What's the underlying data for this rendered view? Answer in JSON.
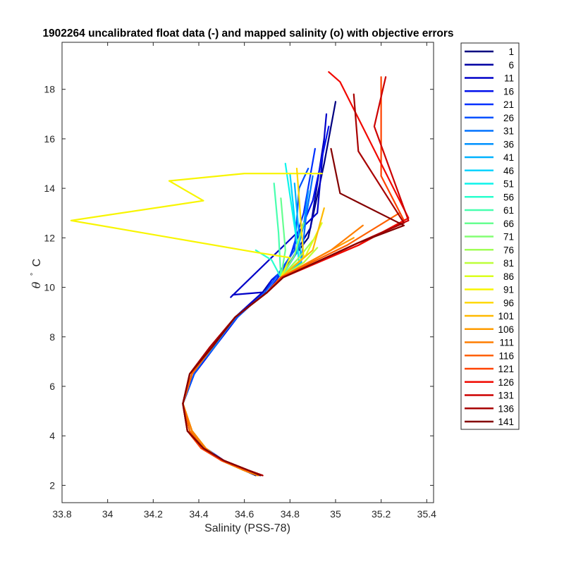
{
  "chart_data": {
    "type": "line",
    "title": "1902264 uncalibrated float data (-) and mapped salinity (o) with objective errors",
    "xlabel": "Salinity (PSS-78)",
    "ylabel_symbol": "θ",
    "ylabel_unit": "C",
    "xlim": [
      33.8,
      35.43
    ],
    "ylim": [
      1.3,
      19.9
    ],
    "xticks": [
      33.8,
      34,
      34.2,
      34.4,
      34.6,
      34.8,
      35,
      35.2,
      35.4
    ],
    "xtick_labels": [
      "33.8",
      "34",
      "34.2",
      "34.4",
      "34.6",
      "34.8",
      "35",
      "35.2",
      "35.4"
    ],
    "yticks": [
      2,
      4,
      6,
      8,
      10,
      12,
      14,
      16,
      18
    ],
    "ytick_labels": [
      "2",
      "4",
      "6",
      "8",
      "10",
      "12",
      "14",
      "16",
      "18"
    ],
    "grid": false,
    "legend_position": "outside-right",
    "series": [
      {
        "name": "1",
        "color": "#000080"
      },
      {
        "name": "6",
        "color": "#0000a3"
      },
      {
        "name": "11",
        "color": "#0000c8"
      },
      {
        "name": "16",
        "color": "#0010ec"
      },
      {
        "name": "21",
        "color": "#0030ff"
      },
      {
        "name": "26",
        "color": "#0050ff"
      },
      {
        "name": "31",
        "color": "#0072ff"
      },
      {
        "name": "36",
        "color": "#0092ff"
      },
      {
        "name": "41",
        "color": "#00b2ff"
      },
      {
        "name": "46",
        "color": "#00d4ff"
      },
      {
        "name": "51",
        "color": "#0cf4eb"
      },
      {
        "name": "56",
        "color": "#29ffce"
      },
      {
        "name": "61",
        "color": "#48ffaf"
      },
      {
        "name": "66",
        "color": "#66ff90"
      },
      {
        "name": "71",
        "color": "#83ff73"
      },
      {
        "name": "76",
        "color": "#a0ff56"
      },
      {
        "name": "81",
        "color": "#bdff39"
      },
      {
        "name": "86",
        "color": "#dbff1c"
      },
      {
        "name": "91",
        "color": "#f8f500"
      },
      {
        "name": "96",
        "color": "#ffd800"
      },
      {
        "name": "101",
        "color": "#ffb900"
      },
      {
        "name": "106",
        "color": "#ff9c00"
      },
      {
        "name": "111",
        "color": "#ff7e00"
      },
      {
        "name": "116",
        "color": "#ff6000"
      },
      {
        "name": "121",
        "color": "#ff4200"
      },
      {
        "name": "126",
        "color": "#f10800"
      },
      {
        "name": "131",
        "color": "#cd0000"
      },
      {
        "name": "136",
        "color": "#a80000"
      },
      {
        "name": "141",
        "color": "#840000"
      }
    ],
    "profiles": [
      {
        "series": 0,
        "s": [
          34.65,
          34.6,
          34.5,
          34.43,
          34.37,
          34.33,
          34.37,
          34.46,
          34.56,
          34.7,
          34.74,
          34.88,
          34.95,
          35.0
        ],
        "t": [
          2.4,
          2.6,
          3.0,
          3.5,
          4.2,
          5.3,
          6.5,
          7.6,
          8.8,
          9.8,
          10.3,
          12.0,
          15.0,
          17.5
        ]
      },
      {
        "series": 1,
        "s": [
          34.66,
          34.6,
          34.5,
          34.42,
          34.37,
          34.33,
          34.38,
          34.47,
          34.57,
          34.68,
          34.72,
          34.78,
          34.89,
          34.95
        ],
        "t": [
          2.4,
          2.6,
          3.0,
          3.5,
          4.2,
          5.3,
          6.5,
          7.6,
          8.8,
          9.8,
          10.3,
          10.7,
          12.4,
          16.0
        ]
      },
      {
        "series": 2,
        "s": [
          34.67,
          34.6,
          34.5,
          34.43,
          34.37,
          34.33,
          34.37,
          34.46,
          34.56,
          34.68,
          34.55,
          34.54,
          34.92,
          34.96
        ],
        "t": [
          2.4,
          2.6,
          3.0,
          3.5,
          4.2,
          5.3,
          6.5,
          7.6,
          8.8,
          9.8,
          9.7,
          9.6,
          13.0,
          17.0
        ]
      },
      {
        "series": 3,
        "s": [
          34.67,
          34.61,
          34.51,
          34.43,
          34.37,
          34.33,
          34.38,
          34.47,
          34.57,
          34.69,
          34.72,
          34.78,
          34.9,
          34.97
        ],
        "t": [
          2.4,
          2.6,
          3.0,
          3.5,
          4.2,
          5.3,
          6.5,
          7.6,
          8.8,
          9.8,
          10.3,
          10.8,
          13.5,
          16.5
        ]
      },
      {
        "series": 4,
        "s": [
          34.66,
          34.61,
          34.5,
          34.43,
          34.37,
          34.33,
          34.37,
          34.46,
          34.56,
          34.7,
          34.74,
          34.8,
          34.86,
          34.91
        ],
        "t": [
          2.4,
          2.6,
          3.0,
          3.5,
          4.2,
          5.3,
          6.5,
          7.6,
          8.8,
          9.8,
          10.3,
          11.2,
          13.0,
          15.6
        ]
      },
      {
        "series": 5,
        "s": [
          34.67,
          34.6,
          34.51,
          34.43,
          34.37,
          34.33,
          34.38,
          34.46,
          34.57,
          34.69,
          34.73,
          34.82,
          34.84,
          34.88
        ],
        "t": [
          2.4,
          2.6,
          3.0,
          3.5,
          4.2,
          5.3,
          6.5,
          7.6,
          8.8,
          9.8,
          10.3,
          11.5,
          14.0,
          14.8
        ]
      },
      {
        "series": 6,
        "s": [
          34.66,
          34.6,
          34.5,
          34.43,
          34.37,
          34.33,
          34.37,
          34.47,
          34.56,
          34.7,
          34.76,
          34.85,
          34.87,
          34.9
        ],
        "t": [
          2.4,
          2.6,
          3.0,
          3.5,
          4.2,
          5.3,
          6.5,
          7.6,
          8.8,
          9.8,
          10.4,
          11.1,
          12.8,
          14.5
        ]
      },
      {
        "series": 7,
        "s": [
          34.66,
          34.6,
          34.5,
          34.43,
          34.37,
          34.33,
          34.37,
          34.46,
          34.56,
          34.7,
          34.76,
          34.83,
          34.86,
          34.88
        ],
        "t": [
          2.4,
          2.6,
          3.0,
          3.5,
          4.2,
          5.3,
          6.5,
          7.6,
          8.8,
          9.8,
          10.4,
          11.4,
          12.5,
          13.9
        ]
      },
      {
        "series": 8,
        "s": [
          34.66,
          34.6,
          34.5,
          34.43,
          34.37,
          34.33,
          34.37,
          34.46,
          34.56,
          34.7,
          34.76,
          34.85,
          34.82
        ],
        "t": [
          2.4,
          2.6,
          3.0,
          3.5,
          4.2,
          5.3,
          6.5,
          7.6,
          8.8,
          9.8,
          10.4,
          11.0,
          14.2
        ]
      },
      {
        "series": 9,
        "s": [
          34.66,
          34.6,
          34.5,
          34.43,
          34.37,
          34.33,
          34.37,
          34.46,
          34.56,
          34.7,
          34.76,
          34.84,
          34.8
        ],
        "t": [
          2.4,
          2.6,
          3.0,
          3.5,
          4.2,
          5.3,
          6.5,
          7.6,
          8.8,
          9.8,
          10.4,
          11.0,
          14.6
        ]
      },
      {
        "series": 10,
        "s": [
          34.66,
          34.6,
          34.5,
          34.43,
          34.37,
          34.33,
          34.37,
          34.46,
          34.56,
          34.7,
          34.76,
          34.84,
          34.78
        ],
        "t": [
          2.4,
          2.6,
          3.0,
          3.5,
          4.2,
          5.3,
          6.5,
          7.6,
          8.8,
          9.8,
          10.4,
          11.2,
          15.0
        ]
      },
      {
        "series": 11,
        "s": [
          34.66,
          34.6,
          34.5,
          34.43,
          34.37,
          34.33,
          34.37,
          34.46,
          34.56,
          34.7,
          34.76,
          34.72,
          34.65
        ],
        "t": [
          2.4,
          2.6,
          3.0,
          3.5,
          4.2,
          5.3,
          6.5,
          7.6,
          8.8,
          9.8,
          10.4,
          11.1,
          11.5
        ]
      },
      {
        "series": 12,
        "s": [
          34.66,
          34.6,
          34.5,
          34.43,
          34.37,
          34.33,
          34.37,
          34.46,
          34.56,
          34.7,
          34.76,
          34.75,
          34.73
        ],
        "t": [
          2.4,
          2.6,
          3.0,
          3.5,
          4.2,
          5.3,
          6.5,
          7.6,
          8.8,
          9.8,
          10.4,
          12.2,
          14.2
        ]
      },
      {
        "series": 13,
        "s": [
          34.66,
          34.6,
          34.5,
          34.43,
          34.37,
          34.33,
          34.37,
          34.46,
          34.56,
          34.7,
          34.76,
          34.78,
          34.76
        ],
        "t": [
          2.4,
          2.6,
          3.0,
          3.5,
          4.2,
          5.3,
          6.5,
          7.6,
          8.8,
          9.8,
          10.4,
          11.5,
          13.6
        ]
      },
      {
        "series": 14,
        "s": [
          34.66,
          34.6,
          34.5,
          34.43,
          34.37,
          34.33,
          34.37,
          34.46,
          34.56,
          34.7,
          34.76,
          34.82,
          34.86
        ],
        "t": [
          2.4,
          2.6,
          3.0,
          3.5,
          4.2,
          5.3,
          6.5,
          7.6,
          8.8,
          9.8,
          10.4,
          11.3,
          12.6
        ]
      },
      {
        "series": 15,
        "s": [
          34.66,
          34.6,
          34.5,
          34.43,
          34.37,
          34.33,
          34.37,
          34.46,
          34.56,
          34.7,
          34.76,
          34.84,
          34.9
        ],
        "t": [
          2.4,
          2.6,
          3.0,
          3.5,
          4.2,
          5.3,
          6.5,
          7.6,
          8.8,
          9.8,
          10.4,
          11.2,
          11.9
        ]
      },
      {
        "series": 16,
        "s": [
          34.66,
          34.6,
          34.5,
          34.43,
          34.37,
          34.33,
          34.37,
          34.46,
          34.56,
          34.7,
          34.76,
          34.86,
          34.92
        ],
        "t": [
          2.4,
          2.6,
          3.0,
          3.5,
          4.2,
          5.3,
          6.5,
          7.6,
          8.8,
          9.8,
          10.4,
          11.0,
          11.6
        ]
      },
      {
        "series": 17,
        "s": [
          34.66,
          34.6,
          34.5,
          34.43,
          34.37,
          34.33,
          34.37,
          34.46,
          34.56,
          34.7,
          34.76,
          34.87,
          34.94
        ],
        "t": [
          2.4,
          2.6,
          3.0,
          3.5,
          4.2,
          5.3,
          6.5,
          7.6,
          8.8,
          9.8,
          10.4,
          11.3,
          12.6
        ]
      },
      {
        "series": 18,
        "s": [
          34.66,
          34.6,
          34.5,
          34.42,
          34.36,
          34.33,
          34.37,
          34.46,
          34.56,
          34.7,
          34.76,
          34.8,
          34.66,
          33.84,
          34.42,
          34.27,
          34.6,
          34.94
        ],
        "t": [
          2.4,
          2.6,
          3.0,
          3.5,
          4.2,
          5.3,
          6.5,
          7.6,
          8.8,
          9.8,
          10.4,
          11.2,
          11.4,
          12.7,
          13.5,
          14.3,
          14.6,
          14.6
        ]
      },
      {
        "series": 19,
        "s": [
          34.66,
          34.6,
          34.5,
          34.43,
          34.37,
          34.33,
          34.37,
          34.46,
          34.56,
          34.7,
          34.76,
          34.86,
          34.83
        ],
        "t": [
          2.4,
          2.6,
          3.0,
          3.5,
          4.2,
          5.3,
          6.5,
          7.6,
          8.8,
          9.8,
          10.4,
          11.2,
          14.8
        ]
      },
      {
        "series": 20,
        "s": [
          34.66,
          34.6,
          34.5,
          34.43,
          34.37,
          34.33,
          34.37,
          34.46,
          34.56,
          34.7,
          34.76,
          34.9,
          34.95
        ],
        "t": [
          2.4,
          2.6,
          3.0,
          3.5,
          4.2,
          5.3,
          6.5,
          7.6,
          8.8,
          9.8,
          10.4,
          11.5,
          13.2
        ]
      },
      {
        "series": 21,
        "s": [
          34.66,
          34.6,
          34.5,
          34.43,
          34.37,
          34.33,
          34.37,
          34.46,
          34.56,
          34.7,
          34.76,
          34.94,
          35.08
        ],
        "t": [
          2.4,
          2.6,
          3.0,
          3.5,
          4.2,
          5.3,
          6.5,
          7.6,
          8.8,
          9.8,
          10.4,
          11.3,
          12.0
        ]
      },
      {
        "series": 22,
        "s": [
          34.66,
          34.6,
          34.5,
          34.43,
          34.37,
          34.33,
          34.37,
          34.46,
          34.56,
          34.7,
          34.76,
          34.98,
          35.12
        ],
        "t": [
          2.4,
          2.6,
          3.0,
          3.5,
          4.2,
          5.3,
          6.5,
          7.6,
          8.8,
          9.8,
          10.4,
          11.5,
          12.5
        ]
      },
      {
        "series": 23,
        "s": [
          34.68,
          34.61,
          34.5,
          34.42,
          34.36,
          34.33,
          34.37,
          34.46,
          34.56,
          34.7,
          34.76,
          35.05,
          35.28
        ],
        "t": [
          2.4,
          2.6,
          3.0,
          3.5,
          4.2,
          5.3,
          6.5,
          7.6,
          8.8,
          9.8,
          10.4,
          11.7,
          13.0
        ]
      },
      {
        "series": 24,
        "s": [
          34.68,
          34.62,
          34.5,
          34.41,
          34.35,
          34.33,
          34.36,
          34.46,
          34.56,
          34.7,
          34.76,
          35.1,
          35.3,
          35.2,
          35.2
        ],
        "t": [
          2.4,
          2.6,
          3.0,
          3.5,
          4.2,
          5.3,
          6.5,
          7.6,
          8.8,
          9.8,
          10.4,
          11.7,
          12.7,
          14.5,
          18.5
        ]
      },
      {
        "series": 25,
        "s": [
          34.68,
          34.62,
          34.51,
          34.42,
          34.35,
          34.33,
          34.36,
          34.45,
          34.56,
          34.7,
          34.77,
          35.1,
          35.32,
          35.02,
          34.97
        ],
        "t": [
          2.4,
          2.6,
          3.0,
          3.5,
          4.2,
          5.3,
          6.5,
          7.6,
          8.8,
          9.8,
          10.4,
          11.7,
          12.8,
          18.3,
          18.7
        ]
      },
      {
        "series": 26,
        "s": [
          34.68,
          34.62,
          34.51,
          34.42,
          34.35,
          34.33,
          34.36,
          34.45,
          34.56,
          34.7,
          34.77,
          35.1,
          35.32,
          35.17,
          35.22
        ],
        "t": [
          2.4,
          2.6,
          3.0,
          3.5,
          4.2,
          5.3,
          6.5,
          7.6,
          8.8,
          9.8,
          10.4,
          11.8,
          12.7,
          16.5,
          18.5
        ]
      },
      {
        "series": 27,
        "s": [
          34.68,
          34.62,
          34.51,
          34.42,
          34.35,
          34.33,
          34.36,
          34.45,
          34.56,
          34.7,
          34.77,
          35.1,
          35.3,
          35.1,
          35.08
        ],
        "t": [
          2.4,
          2.6,
          3.0,
          3.5,
          4.2,
          5.3,
          6.5,
          7.6,
          8.8,
          9.8,
          10.4,
          11.8,
          12.6,
          15.5,
          17.8
        ]
      },
      {
        "series": 28,
        "s": [
          34.67,
          34.62,
          34.51,
          34.42,
          34.35,
          34.33,
          34.36,
          34.46,
          34.56,
          34.7,
          34.77,
          35.1,
          35.3,
          35.02,
          34.98
        ],
        "t": [
          2.4,
          2.6,
          3.0,
          3.5,
          4.2,
          5.3,
          6.5,
          7.6,
          8.8,
          9.8,
          10.4,
          11.8,
          12.5,
          13.8,
          15.6
        ]
      }
    ]
  }
}
